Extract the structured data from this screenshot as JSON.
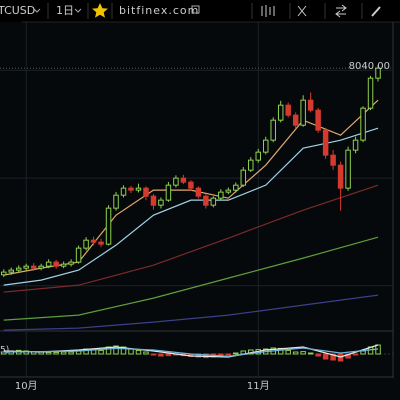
{
  "toolbar": {
    "symbol": "TCUSD",
    "interval": "1日",
    "site": "bitfinex.com"
  },
  "chart_data": {
    "type": "candlestick",
    "ylim": [
      3300,
      8840
    ],
    "yticks": [
      4100,
      6050,
      8000
    ],
    "grid": true,
    "xlim": [
      -0.5,
      52
    ],
    "xticks": [
      {
        "value": 3,
        "label": "10月"
      },
      {
        "value": 34,
        "label": "11月"
      }
    ],
    "up_color": "#8fd14f",
    "down_color": "#d43a2f",
    "candles": [
      [
        4300,
        4400,
        4260,
        4348
      ],
      [
        4348,
        4430,
        4300,
        4384
      ],
      [
        4384,
        4470,
        4340,
        4420
      ],
      [
        4420,
        4500,
        4380,
        4456
      ],
      [
        4456,
        4510,
        4370,
        4420
      ],
      [
        4420,
        4500,
        4380,
        4456
      ],
      [
        4456,
        4580,
        4420,
        4529
      ],
      [
        4529,
        4570,
        4410,
        4456
      ],
      [
        4456,
        4540,
        4420,
        4492
      ],
      [
        4492,
        4580,
        4450,
        4529
      ],
      [
        4529,
        4830,
        4500,
        4782
      ],
      [
        4782,
        4980,
        4740,
        4926
      ],
      [
        4926,
        4990,
        4830,
        4891
      ],
      [
        4891,
        4950,
        4800,
        4854
      ],
      [
        4854,
        5560,
        4830,
        5506
      ],
      [
        5506,
        5800,
        5460,
        5741
      ],
      [
        5741,
        5920,
        5700,
        5868
      ],
      [
        5868,
        5910,
        5780,
        5832
      ],
      [
        5832,
        5950,
        5790,
        5868
      ],
      [
        5868,
        5900,
        5650,
        5723
      ],
      [
        5723,
        5760,
        5480,
        5560
      ],
      [
        5560,
        5700,
        5500,
        5651
      ],
      [
        5651,
        5980,
        5620,
        5922
      ],
      [
        5922,
        6100,
        5880,
        6049
      ],
      [
        6049,
        6110,
        5940,
        5977
      ],
      [
        5977,
        6010,
        5820,
        5868
      ],
      [
        5868,
        5900,
        5680,
        5723
      ],
      [
        5723,
        5760,
        5500,
        5560
      ],
      [
        5560,
        5720,
        5520,
        5687
      ],
      [
        5687,
        5850,
        5650,
        5796
      ],
      [
        5796,
        5880,
        5760,
        5832
      ],
      [
        5832,
        5970,
        5790,
        5922
      ],
      [
        5922,
        6250,
        5890,
        6194
      ],
      [
        6194,
        6430,
        6160,
        6375
      ],
      [
        6375,
        6580,
        6330,
        6520
      ],
      [
        6520,
        6800,
        6480,
        6737
      ],
      [
        6737,
        7150,
        6700,
        7099
      ],
      [
        7099,
        7450,
        7060,
        7370
      ],
      [
        7370,
        7420,
        7150,
        7189
      ],
      [
        7189,
        7240,
        6950,
        7008
      ],
      [
        7008,
        7550,
        6980,
        7461
      ],
      [
        7461,
        7600,
        7240,
        7280
      ],
      [
        7280,
        7320,
        6870,
        6918
      ],
      [
        6918,
        6960,
        6400,
        6465
      ],
      [
        6465,
        6560,
        6200,
        6284
      ],
      [
        6284,
        6350,
        5460,
        5868
      ],
      [
        5868,
        6620,
        5820,
        6556
      ],
      [
        6556,
        6800,
        6500,
        6737
      ],
      [
        6737,
        7350,
        6700,
        7316
      ],
      [
        7316,
        7900,
        7280,
        7859
      ],
      [
        7859,
        8100,
        7800,
        8040
      ]
    ],
    "overlays": [
      {
        "color": "#e0a96d",
        "x": [
          0,
          5,
          10,
          15,
          20,
          25,
          30,
          35,
          40,
          45,
          50
        ],
        "values": [
          4293,
          4420,
          4529,
          5379,
          5832,
          5832,
          5687,
          6284,
          7099,
          6827,
          7461
        ]
      },
      {
        "color": "#9fd3e6",
        "x": [
          0,
          5,
          10,
          15,
          20,
          25,
          30,
          35,
          40,
          45,
          50
        ],
        "values": [
          4112,
          4203,
          4384,
          4836,
          5379,
          5651,
          5651,
          5922,
          6592,
          6737,
          6954
        ]
      },
      {
        "color": "#7a2a2a",
        "x": [
          0,
          10,
          20,
          30,
          40,
          50
        ],
        "values": [
          3986,
          4112,
          4474,
          4963,
          5470,
          5922
        ]
      },
      {
        "color": "#5f9e3a",
        "x": [
          0,
          10,
          20,
          30,
          40,
          50
        ],
        "values": [
          3479,
          3569,
          3877,
          4239,
          4601,
          4981
        ]
      },
      {
        "color": "#3c3f8a",
        "x": [
          0,
          10,
          20,
          30,
          40,
          50
        ],
        "values": [
          3298,
          3334,
          3443,
          3569,
          3750,
          3931
        ]
      }
    ],
    "last_price": 8040,
    "last_price_label": "8040.00",
    "indicator": {
      "type": "macd",
      "label": "5)",
      "ylim": [
        -100,
        100
      ],
      "histogram": [
        10,
        15,
        18,
        15,
        12,
        10,
        8,
        8,
        10,
        10,
        20,
        25,
        22,
        18,
        35,
        40,
        35,
        25,
        18,
        10,
        -5,
        -10,
        -8,
        -5,
        -8,
        -12,
        -15,
        -18,
        -15,
        -10,
        -5,
        5,
        15,
        20,
        22,
        25,
        30,
        28,
        18,
        10,
        12,
        5,
        -10,
        -25,
        -30,
        -35,
        -20,
        -5,
        15,
        35,
        45
      ],
      "lines": [
        {
          "color": "#e8e8e8",
          "x": [
            0,
            5,
            10,
            15,
            20,
            25,
            30,
            35,
            40,
            45,
            50
          ],
          "values": [
            15,
            10,
            20,
            35,
            15,
            -10,
            -15,
            20,
            35,
            -15,
            45
          ]
        },
        {
          "color": "#6fb6d8",
          "x": [
            0,
            5,
            10,
            15,
            20,
            25,
            30,
            35,
            40,
            45,
            50
          ],
          "values": [
            10,
            12,
            15,
            28,
            20,
            0,
            -12,
            12,
            30,
            5,
            25
          ]
        }
      ]
    }
  }
}
